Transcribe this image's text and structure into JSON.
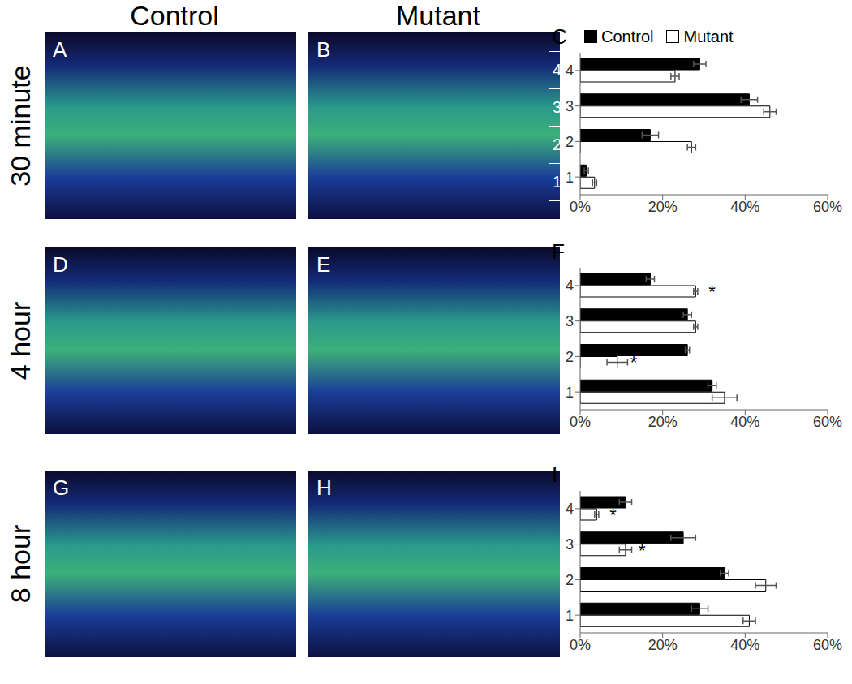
{
  "figure": {
    "column_titles": [
      "Control",
      "Mutant"
    ],
    "row_titles": [
      "30 minute",
      "4 hour",
      "8 hour"
    ],
    "image_panels": [
      [
        "A",
        "B"
      ],
      [
        "D",
        "E"
      ],
      [
        "G",
        "H"
      ]
    ],
    "layer_labels": [
      "4",
      "3",
      "2",
      "1"
    ]
  },
  "chart_data": [
    {
      "type": "bar",
      "title": "C",
      "orientation": "horizontal",
      "categories": [
        "4",
        "3",
        "2",
        "1"
      ],
      "series": [
        {
          "name": "Control",
          "color": "#000000",
          "values": [
            29,
            41,
            17,
            1.5
          ],
          "errors": [
            1.5,
            2,
            2,
            0.5
          ]
        },
        {
          "name": "Mutant",
          "color": "#ffffff",
          "values": [
            23,
            46,
            27,
            3.5
          ],
          "errors": [
            1,
            1.5,
            1,
            0.5
          ]
        }
      ],
      "xlim": [
        0,
        60
      ],
      "xticks": [
        {
          "value": 0,
          "label": "0%"
        },
        {
          "value": 20,
          "label": "20%"
        },
        {
          "value": 40,
          "label": "40%"
        },
        {
          "value": 60,
          "label": "60%"
        }
      ],
      "grid": false,
      "legend": "top",
      "annotations": []
    },
    {
      "type": "bar",
      "title": "F",
      "orientation": "horizontal",
      "categories": [
        "4",
        "3",
        "2",
        "1"
      ],
      "series": [
        {
          "name": "Control",
          "color": "#000000",
          "values": [
            17,
            26,
            26,
            32
          ],
          "errors": [
            1,
            1,
            0.5,
            1
          ]
        },
        {
          "name": "Mutant",
          "color": "#ffffff",
          "values": [
            28,
            28,
            9,
            35
          ],
          "errors": [
            0.5,
            0.5,
            2.5,
            3
          ]
        }
      ],
      "xlim": [
        0,
        60
      ],
      "xticks": [
        {
          "value": 0,
          "label": "0%"
        },
        {
          "value": 20,
          "label": "20%"
        },
        {
          "value": 40,
          "label": "40%"
        },
        {
          "value": 60,
          "label": "60%"
        }
      ],
      "grid": false,
      "annotations": [
        {
          "category": "4",
          "series": "Mutant",
          "text": "*"
        },
        {
          "category": "2",
          "series": "Mutant",
          "text": "*"
        }
      ]
    },
    {
      "type": "bar",
      "title": "I",
      "orientation": "horizontal",
      "categories": [
        "4",
        "3",
        "2",
        "1"
      ],
      "series": [
        {
          "name": "Control",
          "color": "#000000",
          "values": [
            11,
            25,
            35,
            29
          ],
          "errors": [
            1.5,
            3,
            1,
            2
          ]
        },
        {
          "name": "Mutant",
          "color": "#ffffff",
          "values": [
            4,
            11,
            45,
            41
          ],
          "errors": [
            0.5,
            1.5,
            2.5,
            1.5
          ]
        }
      ],
      "xlim": [
        0,
        60
      ],
      "xticks": [
        {
          "value": 0,
          "label": "0%"
        },
        {
          "value": 20,
          "label": "20%"
        },
        {
          "value": 40,
          "label": "40%"
        },
        {
          "value": 60,
          "label": "60%"
        }
      ],
      "grid": false,
      "annotations": [
        {
          "category": "4",
          "series": "Mutant",
          "text": "*"
        },
        {
          "category": "3",
          "series": "Mutant",
          "text": "*"
        }
      ]
    }
  ]
}
